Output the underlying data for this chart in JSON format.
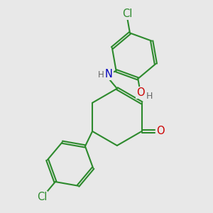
{
  "bg_color": "#e8e8e8",
  "bond_color": "#2d8a2d",
  "bond_width": 1.5,
  "dbo": 0.055,
  "atom_colors": {
    "Cl": "#2d8a2d",
    "N": "#0000bb",
    "O": "#cc0000",
    "H": "#666666"
  },
  "fs_main": 10.5,
  "fs_small": 9.0,
  "xlim": [
    0,
    10
  ],
  "ylim": [
    0,
    10
  ]
}
